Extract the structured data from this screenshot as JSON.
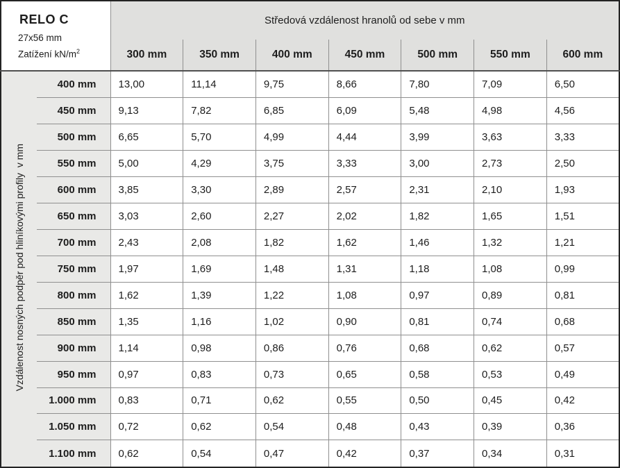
{
  "page": {
    "corner": {
      "title": "RELO C",
      "dimensions": "27x56 mm",
      "load_label": "Zatížení kN/m",
      "load_exponent": "2"
    },
    "group_header": "Středová vzdálenost hranolů od sebe v mm",
    "side_label": "Vzdálenost nosných podpěr pod hliníkovými profily  v mm",
    "columns": [
      "300 mm",
      "350 mm",
      "400 mm",
      "450 mm",
      "500 mm",
      "550 mm",
      "600 mm"
    ],
    "rows": [
      {
        "label": "400 mm",
        "values": [
          "13,00",
          "11,14",
          "9,75",
          "8,66",
          "7,80",
          "7,09",
          "6,50"
        ]
      },
      {
        "label": "450 mm",
        "values": [
          "9,13",
          "7,82",
          "6,85",
          "6,09",
          "5,48",
          "4,98",
          "4,56"
        ]
      },
      {
        "label": "500 mm",
        "values": [
          "6,65",
          "5,70",
          "4,99",
          "4,44",
          "3,99",
          "3,63",
          "3,33"
        ]
      },
      {
        "label": "550 mm",
        "values": [
          "5,00",
          "4,29",
          "3,75",
          "3,33",
          "3,00",
          "2,73",
          "2,50"
        ]
      },
      {
        "label": "600 mm",
        "values": [
          "3,85",
          "3,30",
          "2,89",
          "2,57",
          "2,31",
          "2,10",
          "1,93"
        ]
      },
      {
        "label": "650 mm",
        "values": [
          "3,03",
          "2,60",
          "2,27",
          "2,02",
          "1,82",
          "1,65",
          "1,51"
        ]
      },
      {
        "label": "700 mm",
        "values": [
          "2,43",
          "2,08",
          "1,82",
          "1,62",
          "1,46",
          "1,32",
          "1,21"
        ]
      },
      {
        "label": "750 mm",
        "values": [
          "1,97",
          "1,69",
          "1,48",
          "1,31",
          "1,18",
          "1,08",
          "0,99"
        ]
      },
      {
        "label": "800 mm",
        "values": [
          "1,62",
          "1,39",
          "1,22",
          "1,08",
          "0,97",
          "0,89",
          "0,81"
        ]
      },
      {
        "label": "850 mm",
        "values": [
          "1,35",
          "1,16",
          "1,02",
          "0,90",
          "0,81",
          "0,74",
          "0,68"
        ]
      },
      {
        "label": "900 mm",
        "values": [
          "1,14",
          "0,98",
          "0,86",
          "0,76",
          "0,68",
          "0,62",
          "0,57"
        ]
      },
      {
        "label": "950 mm",
        "values": [
          "0,97",
          "0,83",
          "0,73",
          "0,65",
          "0,58",
          "0,53",
          "0,49"
        ]
      },
      {
        "label": "1.000 mm",
        "values": [
          "0,83",
          "0,71",
          "0,62",
          "0,55",
          "0,50",
          "0,45",
          "0,42"
        ]
      },
      {
        "label": "1.050 mm",
        "values": [
          "0,72",
          "0,62",
          "0,54",
          "0,48",
          "0,43",
          "0,39",
          "0,36"
        ]
      },
      {
        "label": "1.100 mm",
        "values": [
          "0,62",
          "0,54",
          "0,47",
          "0,42",
          "0,37",
          "0,34",
          "0,31"
        ]
      }
    ],
    "colors": {
      "header_bg": "#e0e0de",
      "label_bg": "#e9e9e7",
      "grid": "#8f8f8f",
      "header_rule": "#4f4f4f",
      "outer_border": "#232323",
      "text": "#1d1d1d"
    }
  }
}
